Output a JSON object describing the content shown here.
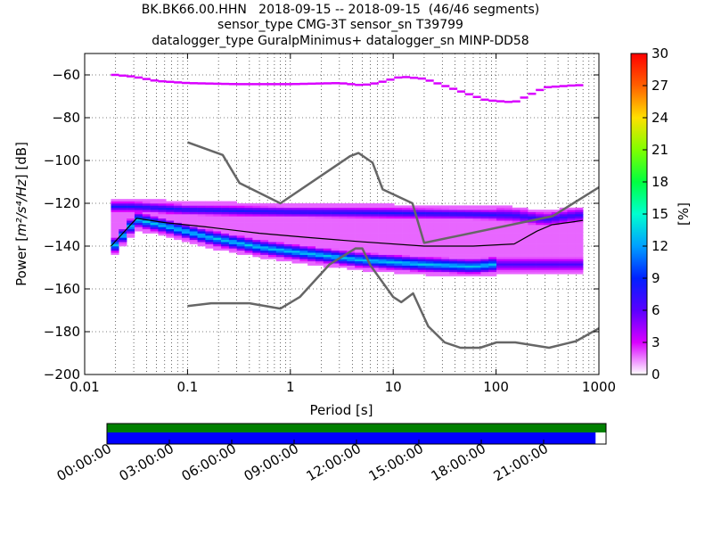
{
  "title_lines": [
    "BK.BK66.00.HHN   2018-09-15 -- 2018-09-15  (46/46 segments)",
    "sensor_type CMG-3T sensor_sn T39799",
    "datalogger_type GuralpMinimus+ datalogger_sn MINP-DD58"
  ],
  "chart_data": {
    "type": "heatmap",
    "xlabel": "Period [s]",
    "ylabel": "Power [m²/s⁴/Hz] [dB]",
    "ylabel_parts": {
      "prefix": "Power [",
      "unit": "m²/s⁴/Hz",
      "suffix": "] [dB]"
    },
    "x_scale": "log",
    "xlim": [
      0.01,
      1000
    ],
    "ylim": [
      -200,
      -50
    ],
    "x_ticks": [
      0.01,
      0.1,
      1,
      10,
      100,
      1000
    ],
    "x_tick_labels": [
      "0.01",
      "0.1",
      "1",
      "10",
      "100",
      "1000"
    ],
    "y_ticks": [
      -60,
      -80,
      -100,
      -120,
      -140,
      -160,
      -180,
      -200
    ],
    "y_tick_labels": [
      "−60",
      "−80",
      "−100",
      "−120",
      "−140",
      "−160",
      "−180",
      "−200"
    ],
    "colorbar": {
      "label": "[%]",
      "min": 0,
      "max": 30,
      "ticks": [
        0,
        3,
        6,
        9,
        12,
        15,
        18,
        21,
        24,
        27,
        30
      ],
      "tick_labels": [
        "0",
        "3",
        "6",
        "9",
        "12",
        "15",
        "18",
        "21",
        "24",
        "27",
        "30"
      ]
    },
    "noise_models": {
      "nhnm": {
        "period": [
          0.1,
          0.22,
          0.32,
          0.8,
          3.8,
          4.6,
          6.3,
          7.9,
          15.4,
          20,
          354.8,
          1000
        ],
        "power": [
          -91.5,
          -97.4,
          -110.5,
          -120,
          -98,
          -96.5,
          -101,
          -113.5,
          -120,
          -138.5,
          -126,
          -112.5
        ]
      },
      "nlnm": {
        "period": [
          0.1,
          0.17,
          0.4,
          0.8,
          1.24,
          2.4,
          4.3,
          5,
          6,
          10,
          12,
          15.6,
          21.9,
          31.6,
          45,
          70,
          101,
          154,
          328,
          600,
          1000
        ],
        "power": [
          -168,
          -166.7,
          -166.7,
          -169.2,
          -163.7,
          -148.6,
          -141.1,
          -141.1,
          -149,
          -163.8,
          -166.2,
          -162.1,
          -177.5,
          -185,
          -187.5,
          -187.5,
          -185,
          -185,
          -187.5,
          -184.4,
          -178.4
        ]
      }
    },
    "mean_curve": {
      "period": [
        0.018,
        0.032,
        0.06,
        0.15,
        0.5,
        1.5,
        5,
        20,
        60,
        150,
        250,
        350,
        500,
        700
      ],
      "power": [
        -140,
        -127,
        -129,
        -131,
        -134,
        -136,
        -138,
        -140,
        -140,
        -139,
        -133,
        -130,
        -129,
        -128
      ]
    },
    "mode_band": {
      "period": [
        0.018,
        0.032,
        0.06,
        0.15,
        0.5,
        1.5,
        5,
        20,
        60,
        100
      ],
      "power": [
        -142,
        -128,
        -131,
        -136,
        -141,
        -144,
        -147,
        -149,
        -150,
        -149
      ]
    },
    "upper_band": {
      "period": [
        0.03,
        0.1,
        1,
        10,
        50,
        150,
        300,
        600
      ],
      "power": [
        -122,
        -123.5,
        -124.5,
        -125,
        -125.5,
        -126,
        -128,
        -126
      ]
    },
    "high_cluster": {
      "period": [
        0.018,
        0.03,
        0.05,
        0.1,
        0.3,
        1,
        3,
        5,
        7,
        12,
        20,
        40,
        80,
        150,
        300,
        600
      ],
      "power": [
        -60,
        -61,
        -63,
        -64,
        -64.5,
        -64.5,
        -64,
        -65,
        -64,
        -61,
        -62,
        -67,
        -72,
        -73,
        -66,
        -65
      ]
    },
    "timeline": {
      "ticks": [
        "00:00:00",
        "03:00:00",
        "06:00:00",
        "09:00:00",
        "12:00:00",
        "15:00:00",
        "18:00:00",
        "21:00:00"
      ],
      "data_coverage_fraction": 1.0,
      "psd_coverage_fraction": 0.979,
      "colors": {
        "data": "#008000",
        "psd": "#0000ff"
      }
    }
  }
}
